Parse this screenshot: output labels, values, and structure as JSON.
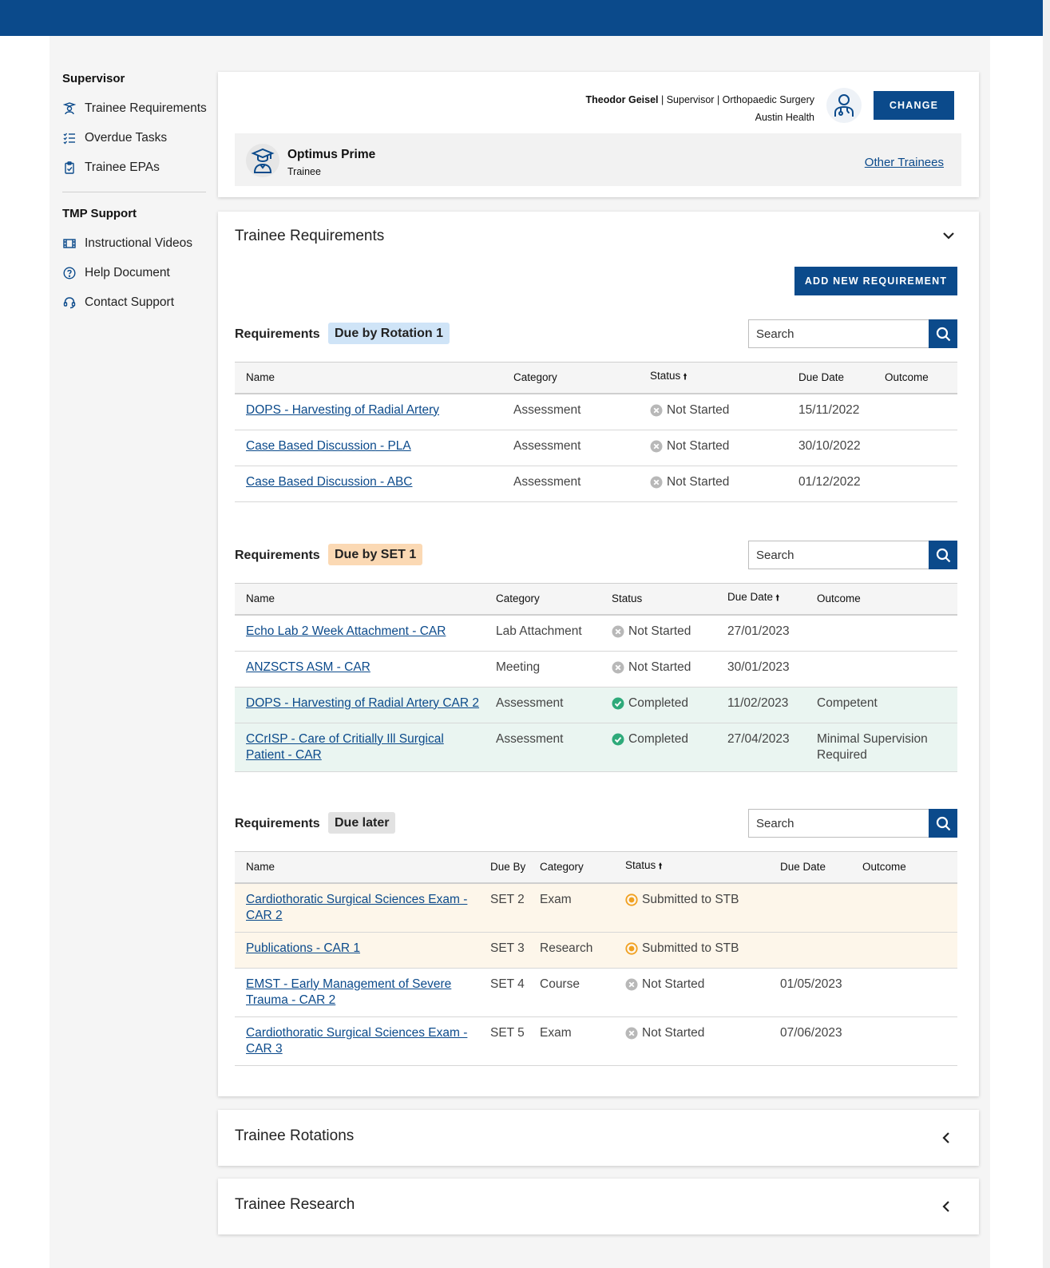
{
  "sidebar": {
    "supervisor_heading": "Supervisor",
    "supervisor_items": [
      {
        "label": "Trainee Requirements",
        "icon": "trainee-requirements-icon"
      },
      {
        "label": "Overdue Tasks",
        "icon": "checklist-icon"
      },
      {
        "label": "Trainee EPAs",
        "icon": "clipboard-icon"
      }
    ],
    "support_heading": "TMP Support",
    "support_items": [
      {
        "label": "Instructional Videos",
        "icon": "film-icon"
      },
      {
        "label": "Help Document",
        "icon": "help-icon"
      },
      {
        "label": "Contact Support",
        "icon": "headset-icon"
      }
    ]
  },
  "header": {
    "user_name": "Theodor Geisel",
    "user_role": "| Supervisor",
    "user_specialty": "| Orthopaedic Surgery",
    "user_site": "Austin Health",
    "change_label": "CHANGE",
    "trainee_name": "Optimus Prime",
    "trainee_role": "Trainee",
    "other_trainees_label": "Other Trainees"
  },
  "main": {
    "title": "Trainee Requirements",
    "add_button": "ADD NEW REQUIREMENT",
    "requirements_label": "Requirements",
    "search_placeholder": "Search",
    "groups": [
      {
        "badge": "Due by Rotation 1",
        "columns": [
          "Name",
          "Category",
          "Status",
          "Due Date",
          "Outcome"
        ],
        "sorted_column": "Status",
        "rows": [
          {
            "name": "DOPS - Harvesting of Radial Artery",
            "category": "Assessment",
            "status": "Not Started",
            "due_date": "15/11/2022",
            "outcome": ""
          },
          {
            "name": "Case Based Discussion - PLA",
            "category": "Assessment",
            "status": "Not Started",
            "due_date": "30/10/2022",
            "outcome": ""
          },
          {
            "name": "Case Based Discussion - ABC",
            "category": "Assessment",
            "status": "Not Started",
            "due_date": "01/12/2022",
            "outcome": ""
          }
        ]
      },
      {
        "badge": "Due by SET 1",
        "columns": [
          "Name",
          "Category",
          "Status",
          "Due Date",
          "Outcome"
        ],
        "sorted_column": "Due Date",
        "rows": [
          {
            "name": "Echo Lab 2 Week Attachment - CAR",
            "category": "Lab Attachment",
            "status": "Not Started",
            "due_date": "27/01/2023",
            "outcome": ""
          },
          {
            "name": "ANZSCTS ASM - CAR",
            "category": "Meeting",
            "status": "Not Started",
            "due_date": "30/01/2023",
            "outcome": ""
          },
          {
            "name": "DOPS - Harvesting of Radial Artery CAR 2",
            "category": "Assessment",
            "status": "Completed",
            "due_date": "11/02/2023",
            "outcome": "Competent"
          },
          {
            "name": "CCrISP - Care of Critially Ill Surgical Patient - CAR",
            "category": "Assessment",
            "status": "Completed",
            "due_date": "27/04/2023",
            "outcome": "Minimal Supervision Required"
          }
        ]
      },
      {
        "badge": "Due later",
        "columns": [
          "Name",
          "Due By",
          "Category",
          "Status",
          "Due Date",
          "Outcome"
        ],
        "sorted_column": "Status",
        "rows": [
          {
            "name": "Cardiothoratic Surgical Sciences Exam - CAR 2",
            "due_by": "SET 2",
            "category": "Exam",
            "status": "Submitted to STB",
            "due_date": "",
            "outcome": ""
          },
          {
            "name": "Publications - CAR 1",
            "due_by": "SET 3",
            "category": "Research",
            "status": "Submitted to STB",
            "due_date": "",
            "outcome": ""
          },
          {
            "name": "EMST - Early Management of Severe Trauma -  CAR 2",
            "due_by": "SET 4",
            "category": "Course",
            "status": "Not Started",
            "due_date": "01/05/2023",
            "outcome": ""
          },
          {
            "name": "Cardiothoratic Surgical Sciences Exam - CAR 3",
            "due_by": "SET 5",
            "category": "Exam",
            "status": "Not Started",
            "due_date": "07/06/2023",
            "outcome": ""
          }
        ]
      }
    ]
  },
  "collapsed_sections": [
    {
      "title": "Trainee Rotations"
    },
    {
      "title": "Trainee Research"
    }
  ],
  "colors": {
    "brand": "#0b4a8b",
    "completed_row": "#eaf5f1",
    "submitted_row": "#fdf6ea",
    "completed_icon": "#2eaa7a",
    "submitted_icon": "#f0a020",
    "not_started_icon": "#b8b8b8"
  }
}
